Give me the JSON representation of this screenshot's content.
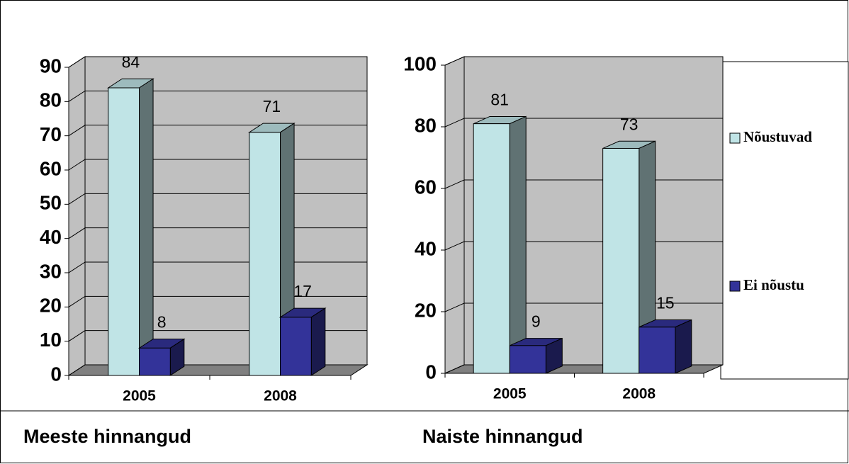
{
  "chart_data": [
    {
      "type": "bar3d",
      "title": "Meeste hinnangud",
      "categories": [
        "2005",
        "2008"
      ],
      "series": [
        {
          "name": "Nõustuvad",
          "color": "#c0e4e6",
          "values": [
            84,
            71
          ]
        },
        {
          "name": "Ei nõustu",
          "color": "#333399",
          "values": [
            8,
            17
          ]
        }
      ],
      "ylim": [
        0,
        90
      ],
      "yticks": [
        0,
        10,
        20,
        30,
        40,
        50,
        60,
        70,
        80,
        90
      ],
      "grid": true
    },
    {
      "type": "bar3d",
      "title": "Naiste hinnangud",
      "categories": [
        "2005",
        "2008"
      ],
      "series": [
        {
          "name": "Nõustuvad",
          "color": "#c0e4e6",
          "values": [
            81,
            73
          ]
        },
        {
          "name": "Ei nõustu",
          "color": "#333399",
          "values": [
            9,
            15
          ]
        }
      ],
      "ylim": [
        0,
        100
      ],
      "yticks": [
        0,
        20,
        40,
        60,
        80,
        100
      ],
      "grid": true,
      "legend": "right"
    }
  ]
}
